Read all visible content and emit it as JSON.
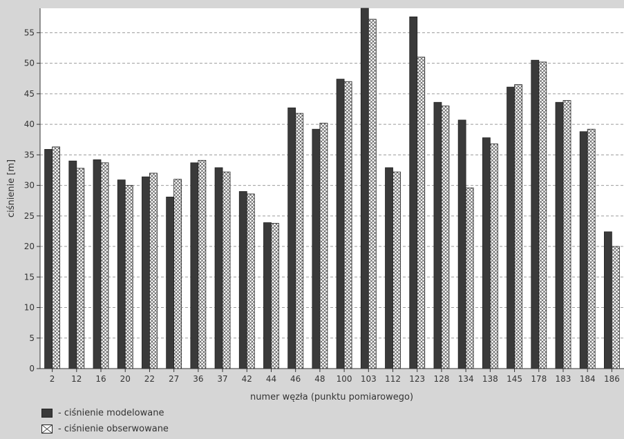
{
  "chart_data": {
    "type": "bar",
    "title": "",
    "xlabel": "numer węzła (punktu pomiarowego)",
    "ylabel": "ciśnienie [m]",
    "ylim": [
      0,
      59
    ],
    "yticks": [
      0,
      5,
      10,
      15,
      20,
      25,
      30,
      35,
      40,
      45,
      50,
      55
    ],
    "grid": true,
    "legend_position": "bottom-left",
    "categories": [
      "2",
      "12",
      "16",
      "20",
      "22",
      "27",
      "36",
      "37",
      "42",
      "44",
      "46",
      "48",
      "100",
      "103",
      "112",
      "123",
      "128",
      "134",
      "138",
      "145",
      "178",
      "183",
      "184",
      "186"
    ],
    "series": [
      {
        "name": "- ciśnienie modelowane",
        "color": "#3a3a3a",
        "pattern": "solid",
        "values": [
          35.9,
          34.0,
          34.2,
          30.9,
          31.4,
          28.1,
          33.7,
          32.9,
          29.0,
          23.9,
          42.7,
          39.2,
          47.4,
          59.0,
          32.9,
          57.6,
          43.6,
          40.7,
          37.8,
          46.1,
          50.5,
          43.6,
          38.8,
          22.4
        ]
      },
      {
        "name": "- ciśnienie obserwowane",
        "color": "#ffffff",
        "pattern": "crosshatch",
        "values": [
          36.3,
          32.8,
          33.7,
          30.0,
          32.0,
          31.0,
          34.1,
          32.2,
          28.6,
          23.8,
          41.8,
          40.2,
          47.0,
          57.2,
          32.2,
          51.0,
          43.0,
          29.6,
          36.8,
          46.5,
          50.2,
          43.9,
          39.2,
          20.0
        ]
      }
    ]
  }
}
